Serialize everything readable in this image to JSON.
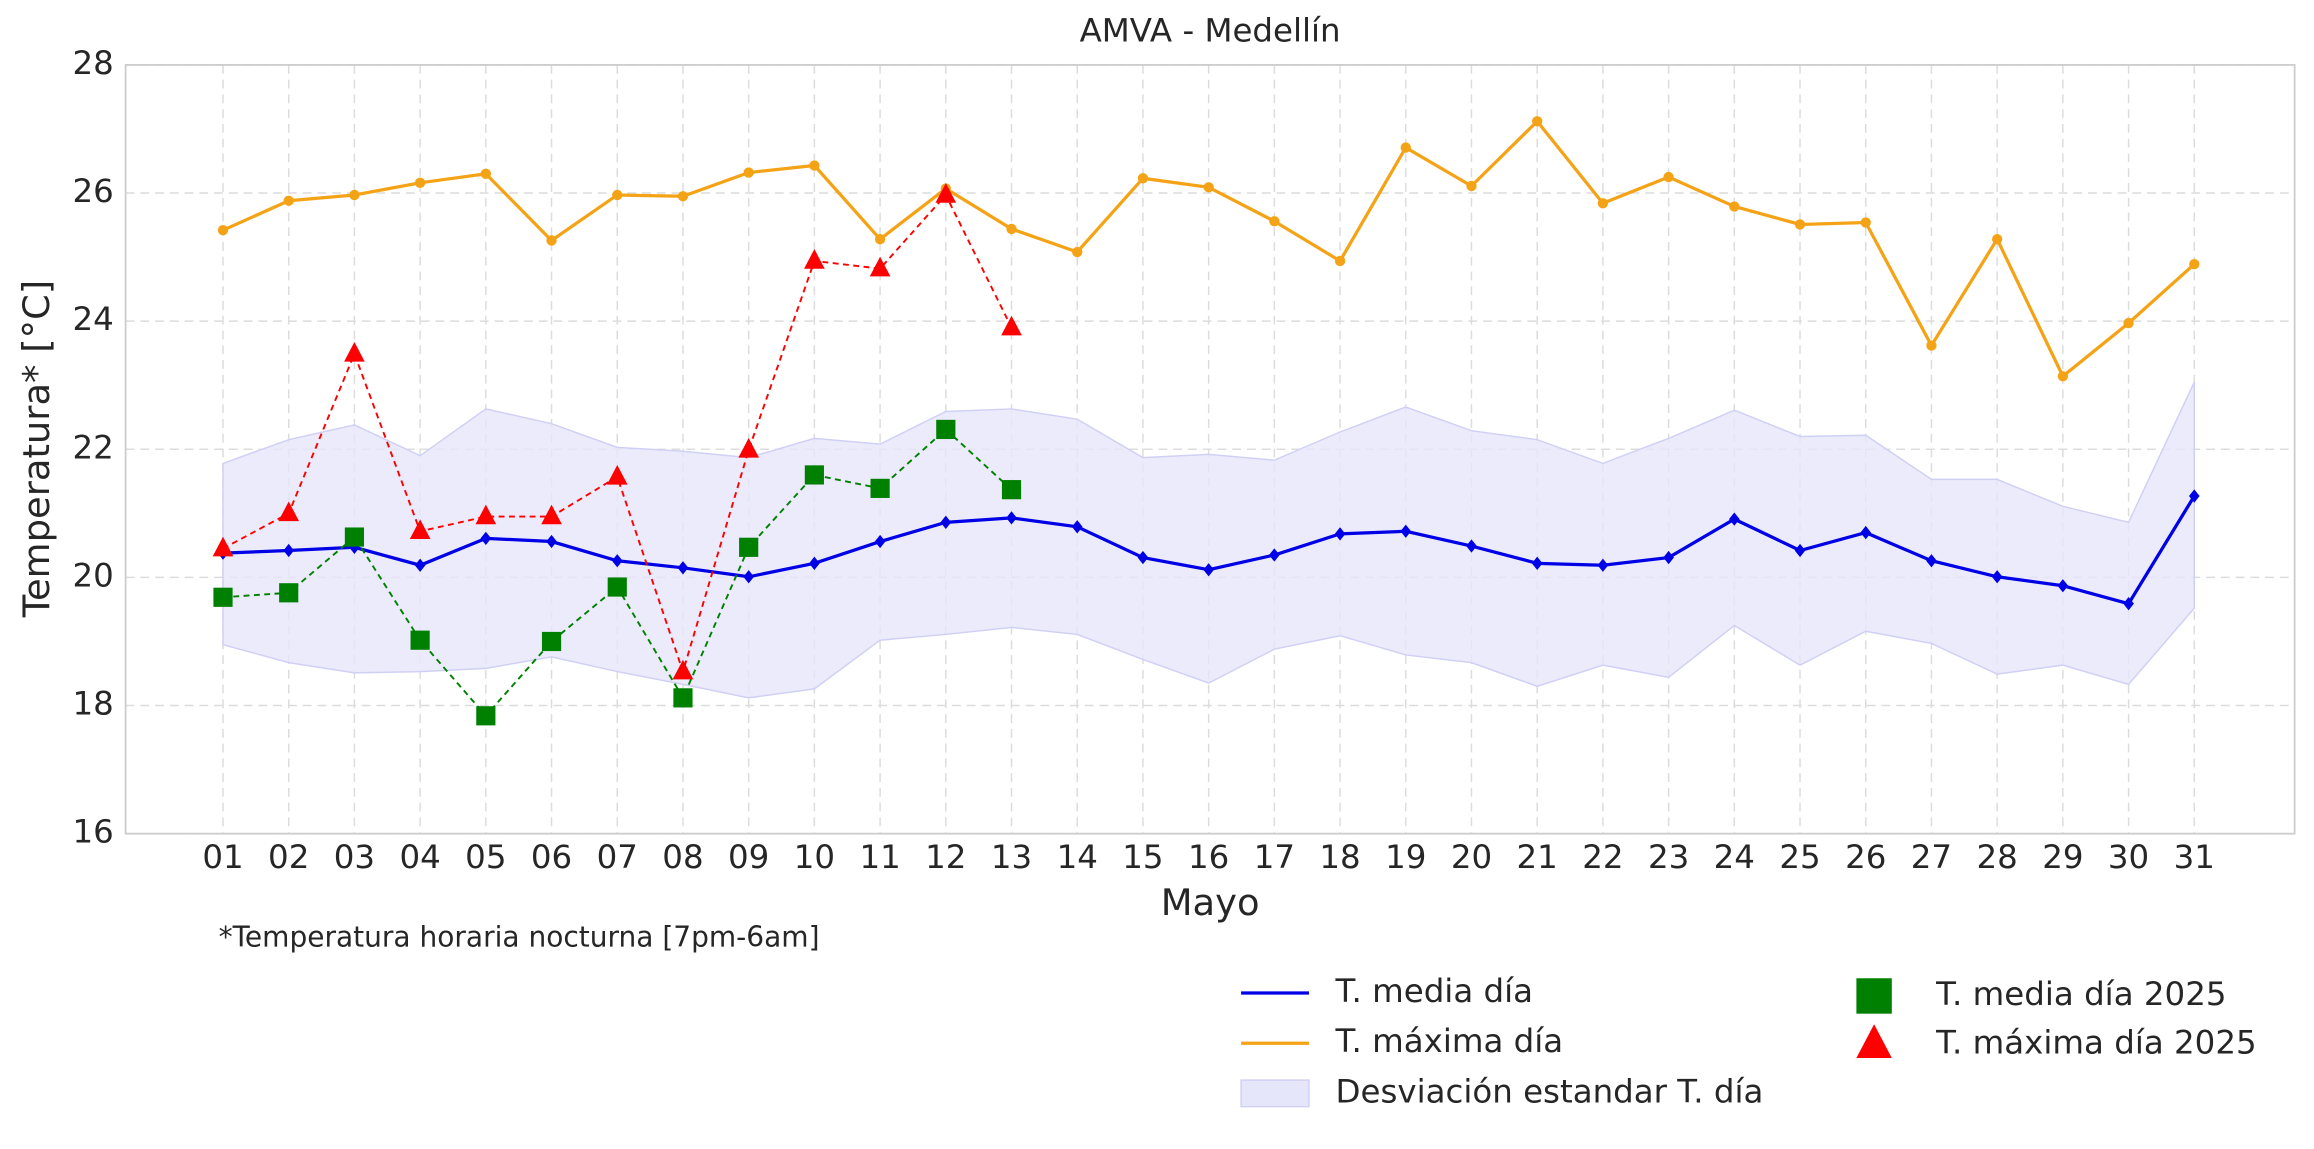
{
  "chart_data": {
    "type": "line",
    "title": "AMVA - Medellín",
    "x_label": "Mayo",
    "y_label": "Temperatura* [°C]",
    "annotation": "*Temperatura horaria nocturna [7pm-6am]",
    "categories": [
      "01",
      "02",
      "03",
      "04",
      "05",
      "06",
      "07",
      "08",
      "09",
      "10",
      "11",
      "12",
      "13",
      "14",
      "15",
      "16",
      "17",
      "18",
      "19",
      "20",
      "21",
      "22",
      "23",
      "24",
      "25",
      "26",
      "27",
      "28",
      "29",
      "30",
      "31"
    ],
    "ylim": [
      16,
      28
    ],
    "yticks": [
      16,
      18,
      20,
      22,
      24,
      26,
      28
    ],
    "grid": true,
    "band": {
      "name": "Desviación estandar T. día",
      "color": "#e6e6fb",
      "upper": [
        21.78,
        22.15,
        22.38,
        21.9,
        22.63,
        22.4,
        22.03,
        21.97,
        21.87,
        22.17,
        22.08,
        22.59,
        22.63,
        22.47,
        21.87,
        21.92,
        21.83,
        22.27,
        22.66,
        22.29,
        22.15,
        21.78,
        22.17,
        22.61,
        22.2,
        22.22,
        21.53,
        21.53,
        21.11,
        20.86,
        23.05
      ],
      "lower": [
        18.95,
        18.67,
        18.51,
        18.53,
        18.58,
        18.76,
        18.53,
        18.33,
        18.12,
        18.26,
        19.02,
        19.11,
        19.22,
        19.11,
        18.72,
        18.35,
        18.88,
        19.09,
        18.79,
        18.67,
        18.3,
        18.63,
        18.44,
        19.25,
        18.63,
        19.16,
        18.97,
        18.49,
        18.63,
        18.33,
        19.52
      ]
    },
    "series": [
      {
        "name": "T. media día",
        "color": "#0000e6",
        "marker": "diamond",
        "dashed": false,
        "values": [
          20.38,
          20.42,
          20.47,
          20.19,
          20.61,
          20.56,
          20.26,
          20.15,
          20.01,
          20.22,
          20.56,
          20.86,
          20.93,
          20.79,
          20.31,
          20.12,
          20.35,
          20.68,
          20.72,
          20.49,
          20.22,
          20.19,
          20.31,
          20.91,
          20.42,
          20.7,
          20.26,
          20.01,
          19.87,
          19.59,
          21.27
        ]
      },
      {
        "name": "T. máxima día",
        "color": "#f5a316",
        "marker": "circle",
        "dashed": false,
        "values": [
          25.42,
          25.88,
          25.97,
          26.16,
          26.3,
          25.26,
          25.97,
          25.95,
          26.32,
          26.43,
          25.28,
          26.07,
          25.44,
          25.08,
          26.23,
          26.09,
          25.56,
          24.94,
          26.71,
          26.11,
          27.12,
          25.84,
          26.25,
          25.79,
          25.51,
          25.54,
          23.62,
          25.28,
          23.14,
          23.97,
          24.89
        ]
      },
      {
        "name": "T. media día 2025",
        "color": "#008000",
        "marker": "square",
        "dashed": true,
        "values": [
          19.69,
          19.76,
          20.63,
          19.02,
          17.84,
          19.0,
          19.85,
          18.12,
          20.47,
          21.6,
          21.39,
          22.31,
          21.37,
          null,
          null,
          null,
          null,
          null,
          null,
          null,
          null,
          null,
          null,
          null,
          null,
          null,
          null,
          null,
          null,
          null,
          null
        ]
      },
      {
        "name": "T. máxima día 2025",
        "color": "#ff0000",
        "marker": "triangle",
        "dashed": true,
        "values": [
          20.45,
          21.0,
          23.49,
          20.72,
          20.95,
          20.95,
          21.57,
          18.53,
          21.99,
          24.94,
          24.82,
          25.97,
          23.9,
          null,
          null,
          null,
          null,
          null,
          null,
          null,
          null,
          null,
          null,
          null,
          null,
          null,
          null,
          null,
          null,
          null,
          null
        ]
      }
    ]
  }
}
